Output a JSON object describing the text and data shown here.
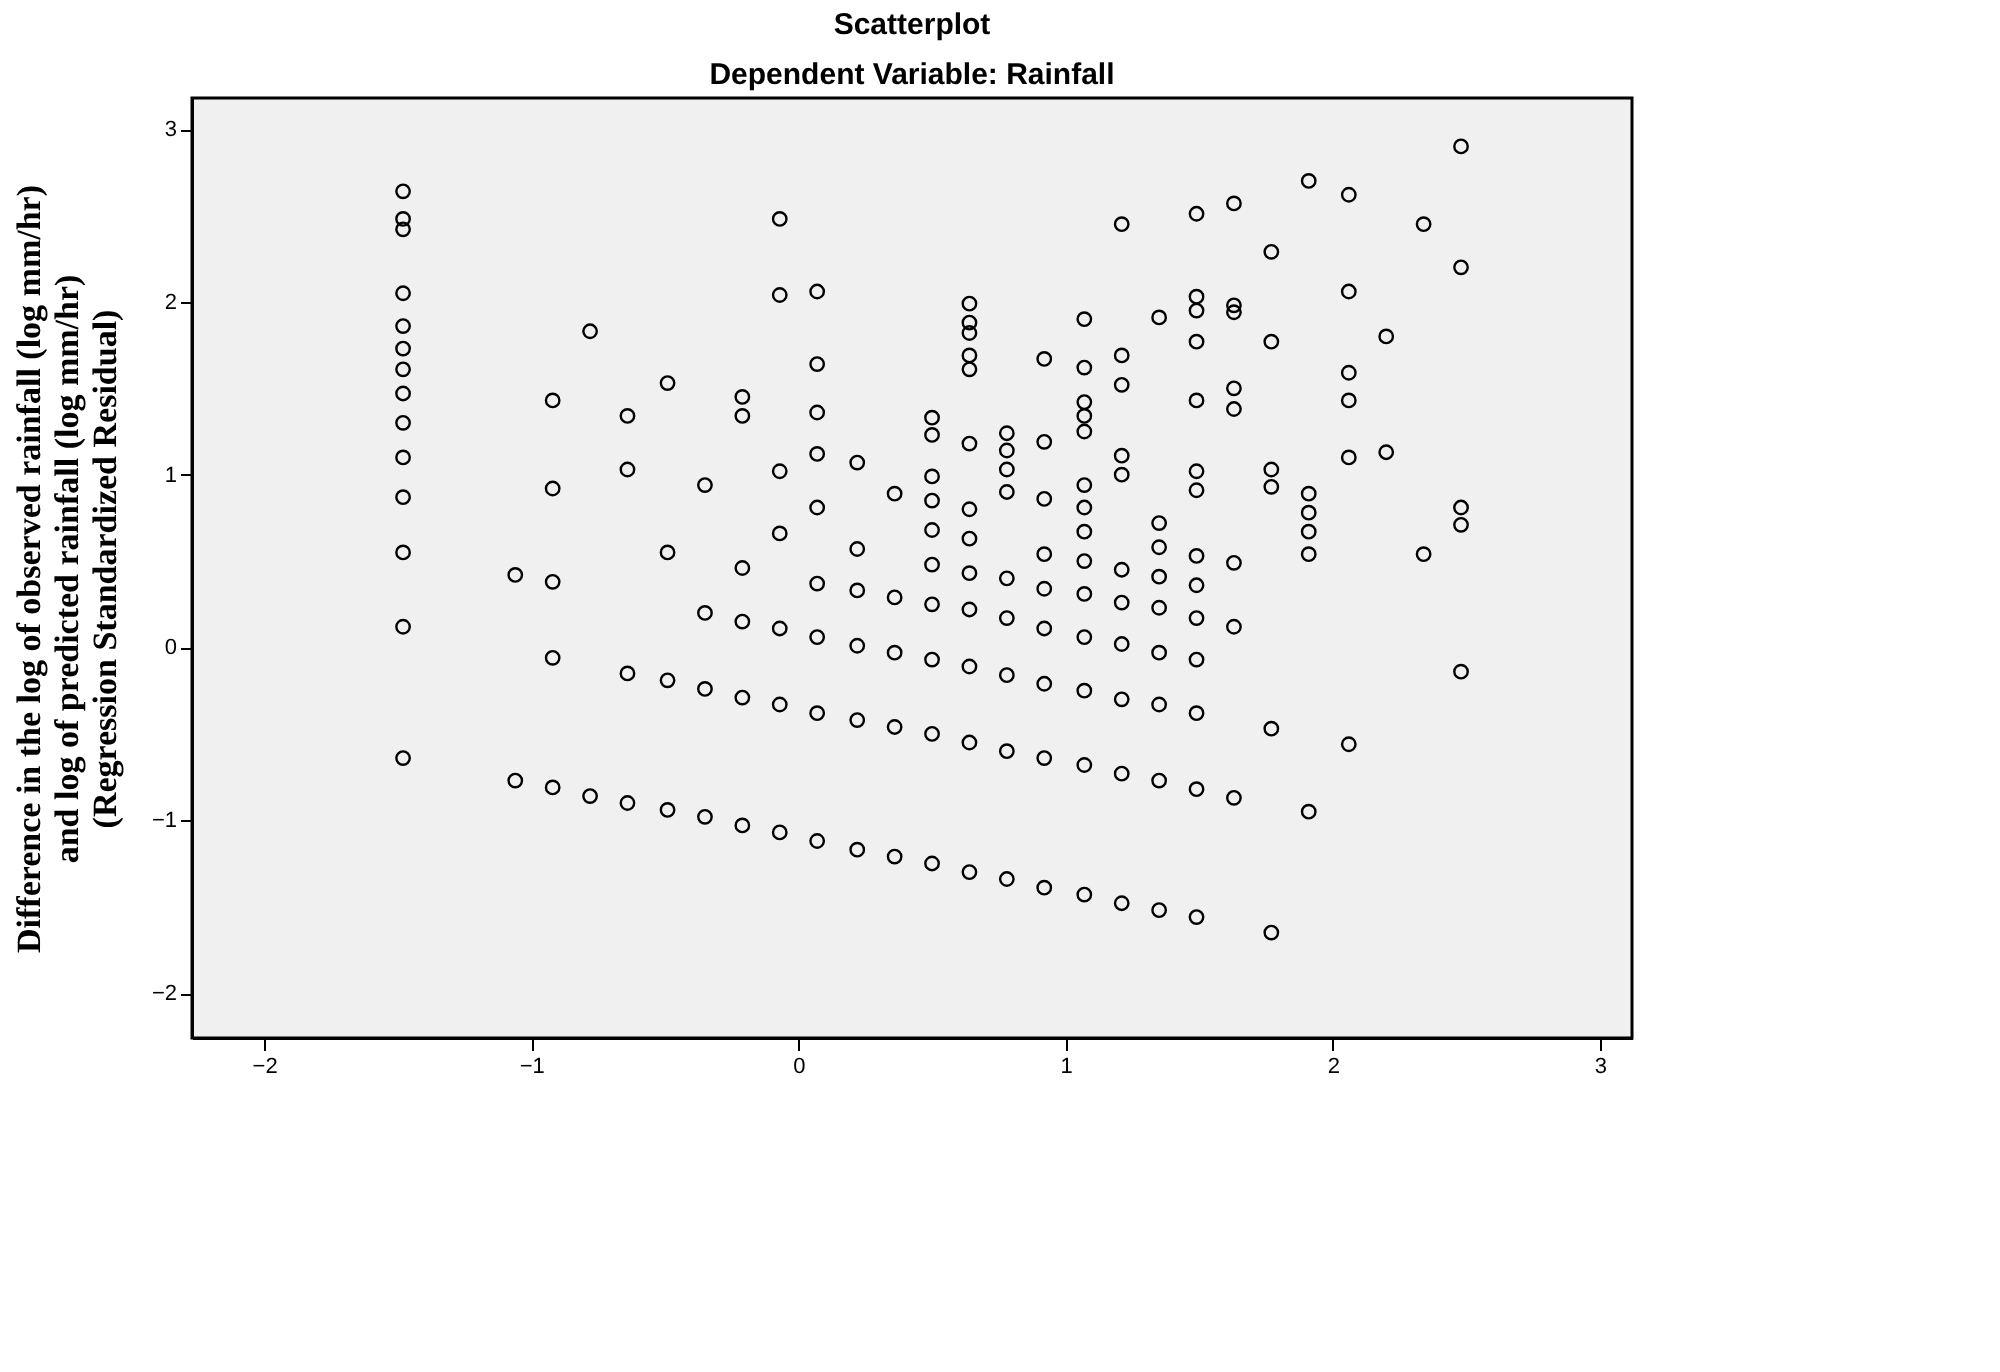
{
  "chart_data": {
    "type": "scatter",
    "title": "Scatterplot",
    "subtitle": "Dependent Variable: Rainfall",
    "ylabel": "Difference in the log of observed rainfall (log mm/hr)\nand log of predicted rainfall (log mm/hr)\n(Regression Standardized Residual)",
    "xlim": [
      -2.27,
      3.12
    ],
    "ylim": [
      -2.26,
      3.18
    ],
    "xticks": [
      -2,
      -1,
      0,
      1,
      2,
      3
    ],
    "yticks": [
      -2,
      -1,
      0,
      1,
      2,
      3
    ],
    "marker": "circle",
    "grid": false,
    "series": [
      {
        "color": "#000000",
        "x": [
          -1.48,
          -1.48,
          -1.48,
          -1.48,
          -1.48,
          -1.48,
          -1.48,
          -1.48,
          -1.48,
          -1.48,
          -1.48,
          -1.48,
          -1.48,
          -1.48,
          -1.06,
          -1.06,
          -0.92,
          -0.92,
          -0.92,
          -0.92,
          -0.92,
          -0.78,
          -0.78,
          -0.64,
          -0.64,
          -0.64,
          -0.64,
          -0.49,
          -0.49,
          -0.49,
          -0.49,
          -0.35,
          -0.35,
          -0.35,
          -0.35,
          -0.21,
          -0.21,
          -0.21,
          -0.21,
          -0.21,
          -0.21,
          -0.07,
          -0.07,
          -0.07,
          -0.07,
          -0.07,
          -0.07,
          -0.07,
          0.07,
          0.07,
          0.07,
          0.07,
          0.07,
          0.07,
          0.07,
          0.07,
          0.07,
          0.22,
          0.22,
          0.22,
          0.22,
          0.22,
          0.22,
          0.36,
          0.36,
          0.36,
          0.36,
          0.36,
          0.5,
          0.5,
          0.5,
          0.5,
          0.5,
          0.5,
          0.5,
          0.5,
          0.5,
          0.5,
          0.64,
          0.64,
          0.64,
          0.64,
          0.64,
          0.64,
          0.64,
          0.64,
          0.64,
          0.64,
          0.64,
          0.64,
          0.64,
          0.78,
          0.78,
          0.78,
          0.78,
          0.78,
          0.78,
          0.78,
          0.78,
          0.78,
          0.92,
          0.92,
          0.92,
          0.92,
          0.92,
          0.92,
          0.92,
          0.92,
          0.92,
          1.07,
          1.07,
          1.07,
          1.07,
          1.07,
          1.07,
          1.07,
          1.07,
          1.07,
          1.07,
          1.07,
          1.07,
          1.07,
          1.07,
          1.21,
          1.21,
          1.21,
          1.21,
          1.21,
          1.21,
          1.21,
          1.21,
          1.21,
          1.21,
          1.21,
          1.35,
          1.35,
          1.35,
          1.35,
          1.35,
          1.35,
          1.35,
          1.35,
          1.35,
          1.49,
          1.49,
          1.49,
          1.49,
          1.49,
          1.49,
          1.49,
          1.49,
          1.49,
          1.49,
          1.49,
          1.49,
          1.49,
          1.49,
          1.63,
          1.63,
          1.63,
          1.63,
          1.63,
          1.63,
          1.63,
          1.63,
          1.77,
          1.77,
          1.77,
          1.77,
          1.77,
          1.77,
          1.91,
          1.91,
          1.91,
          1.91,
          1.91,
          1.91,
          2.06,
          2.06,
          2.06,
          2.06,
          2.06,
          2.06,
          2.2,
          2.2,
          2.34,
          2.34,
          2.48,
          2.48,
          2.48,
          2.48,
          2.48
        ],
        "values": [
          2.64,
          2.48,
          2.42,
          2.05,
          1.86,
          1.73,
          1.61,
          1.47,
          1.3,
          1.1,
          0.87,
          0.55,
          0.12,
          -0.64,
          0.42,
          -0.77,
          1.43,
          0.92,
          0.38,
          -0.06,
          -0.81,
          1.83,
          -0.86,
          1.34,
          1.03,
          -0.15,
          -0.9,
          1.53,
          0.55,
          -0.19,
          -0.94,
          0.94,
          0.2,
          -0.24,
          -0.98,
          1.45,
          1.34,
          0.46,
          0.15,
          -0.29,
          -1.03,
          2.48,
          2.04,
          1.02,
          0.66,
          0.11,
          -0.33,
          -1.07,
          2.06,
          1.64,
          1.36,
          1.12,
          0.81,
          0.37,
          0.06,
          -0.38,
          -1.12,
          1.07,
          0.57,
          0.33,
          0.01,
          -0.42,
          -1.17,
          0.89,
          0.29,
          -0.03,
          -0.46,
          -1.21,
          1.33,
          1.23,
          0.99,
          0.85,
          0.68,
          0.48,
          0.25,
          -0.07,
          -0.5,
          -1.25,
          1.99,
          1.88,
          1.82,
          1.69,
          1.61,
          1.18,
          0.8,
          0.63,
          0.43,
          0.22,
          -0.11,
          -0.55,
          -1.3,
          1.24,
          1.14,
          1.03,
          0.9,
          0.4,
          0.17,
          -0.16,
          -0.6,
          -1.34,
          1.67,
          1.19,
          0.86,
          0.54,
          0.34,
          0.11,
          -0.21,
          -0.64,
          -1.39,
          1.9,
          1.62,
          1.42,
          1.34,
          1.25,
          0.94,
          0.81,
          0.67,
          0.5,
          0.31,
          0.06,
          -0.25,
          -0.68,
          -1.43,
          2.45,
          1.69,
          1.52,
          1.11,
          1.0,
          0.45,
          0.26,
          0.02,
          -0.3,
          -0.73,
          -1.48,
          1.91,
          0.72,
          0.58,
          0.41,
          0.23,
          -0.03,
          -0.33,
          -0.77,
          -1.52,
          2.51,
          2.03,
          1.95,
          1.77,
          1.43,
          1.02,
          0.91,
          0.53,
          0.36,
          0.17,
          -0.07,
          -0.38,
          -0.82,
          -1.56,
          2.57,
          1.98,
          1.94,
          1.5,
          1.38,
          0.49,
          0.12,
          -0.87,
          2.29,
          1.77,
          1.03,
          0.93,
          -0.47,
          -1.65,
          2.7,
          0.89,
          0.78,
          0.67,
          0.54,
          -0.95,
          2.62,
          2.06,
          1.59,
          1.43,
          1.1,
          -0.56,
          1.8,
          1.13,
          2.45,
          0.54,
          2.9,
          2.2,
          0.81,
          0.71,
          -0.14
        ]
      }
    ]
  }
}
